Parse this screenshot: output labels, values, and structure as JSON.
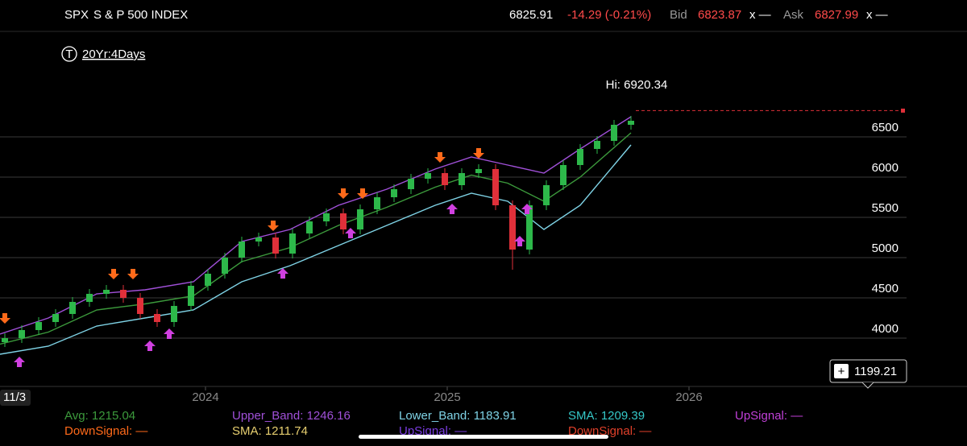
{
  "header": {
    "symbol": "SPX",
    "name": "S & P 500 INDEX",
    "last": 6825.91,
    "change": "-14.29 (-0.21%)",
    "bid_label": "Bid",
    "bid": "6823.87",
    "bid_size": "x —",
    "ask_label": "Ask",
    "ask": "6827.99",
    "ask_size": "x —"
  },
  "period": "20Yr:4Days",
  "date_tag": "11/3",
  "price_tag": "1199.21",
  "chart_data": {
    "type": "candlestick",
    "annotation": "Hi: 6920.34",
    "x": [
      2023.17,
      2023.24,
      2023.31,
      2023.38,
      2023.45,
      2023.52,
      2023.59,
      2023.66,
      2023.73,
      2023.8,
      2023.87,
      2023.94,
      2024.01,
      2024.08,
      2024.15,
      2024.22,
      2024.29,
      2024.36,
      2024.43,
      2024.5,
      2024.57,
      2024.64,
      2024.71,
      2024.78,
      2024.85,
      2024.92,
      2024.99,
      2025.06,
      2025.13,
      2025.2,
      2025.27,
      2025.34,
      2025.41,
      2025.48,
      2025.55,
      2025.62,
      2025.69,
      2025.76
    ],
    "open": [
      3950,
      4000,
      4100,
      4200,
      4300,
      4450,
      4550,
      4600,
      4500,
      4300,
      4200,
      4400,
      4650,
      4800,
      5000,
      5200,
      5250,
      5050,
      5300,
      5450,
      5550,
      5350,
      5600,
      5750,
      5850,
      5980,
      6050,
      5900,
      6050,
      6100,
      5650,
      5100,
      5650,
      5900,
      6150,
      6350,
      6450,
      6650
    ],
    "high": [
      4060,
      4160,
      4260,
      4360,
      4510,
      4610,
      4660,
      4660,
      4560,
      4360,
      4460,
      4710,
      4860,
      5060,
      5260,
      5310,
      5310,
      5360,
      5510,
      5610,
      5610,
      5660,
      5810,
      5910,
      6040,
      6110,
      6110,
      6110,
      6160,
      6160,
      5710,
      5710,
      5960,
      6210,
      6410,
      6510,
      6710,
      6760
    ],
    "low": [
      3890,
      3940,
      4040,
      4140,
      4240,
      4390,
      4490,
      4440,
      4240,
      4140,
      4140,
      4340,
      4590,
      4740,
      4940,
      5140,
      4990,
      4990,
      5240,
      5390,
      5290,
      5290,
      5540,
      5690,
      5790,
      5920,
      5840,
      5840,
      5990,
      5590,
      4850,
      5040,
      5590,
      5840,
      6090,
      6290,
      6390,
      6590
    ],
    "close": [
      4000,
      4100,
      4200,
      4300,
      4450,
      4550,
      4600,
      4500,
      4300,
      4200,
      4400,
      4650,
      4800,
      5000,
      5200,
      5250,
      5050,
      5300,
      5450,
      5550,
      5350,
      5600,
      5750,
      5850,
      5980,
      6050,
      5900,
      6050,
      6100,
      5650,
      5100,
      5650,
      5900,
      6150,
      6350,
      6450,
      6650,
      6700
    ],
    "up_color": "#2db84a",
    "down_color": "#e0303a",
    "bands": [
      {
        "color": "#a050d8",
        "x": [
          2023.15,
          2023.35,
          2023.55,
          2023.75,
          2023.95,
          2024.15,
          2024.35,
          2024.55,
          2024.75,
          2024.95,
          2025.1,
          2025.25,
          2025.4,
          2025.55,
          2025.76
        ],
        "values": [
          4050,
          4250,
          4550,
          4600,
          4700,
          5200,
          5350,
          5650,
          5850,
          6100,
          6250,
          6150,
          6050,
          6350,
          6750
        ]
      },
      {
        "color": "#3c9a3c",
        "x": [
          2023.15,
          2023.35,
          2023.55,
          2023.75,
          2023.95,
          2024.15,
          2024.35,
          2024.55,
          2024.75,
          2024.95,
          2025.1,
          2025.25,
          2025.4,
          2025.55,
          2025.76
        ],
        "values": [
          3925,
          4075,
          4350,
          4425,
          4525,
          4950,
          5125,
          5400,
          5625,
          5875,
          6025,
          5925,
          5700,
          6000,
          6550
        ]
      },
      {
        "color": "#7fd3e6",
        "x": [
          2023.15,
          2023.35,
          2023.55,
          2023.75,
          2023.95,
          2024.15,
          2024.35,
          2024.55,
          2024.75,
          2024.95,
          2025.1,
          2025.25,
          2025.4,
          2025.55,
          2025.76
        ],
        "values": [
          3800,
          3900,
          4150,
          4250,
          4350,
          4700,
          4900,
          5150,
          5400,
          5650,
          5800,
          5700,
          5350,
          5650,
          6400
        ]
      }
    ],
    "down_signals": {
      "color": "#ff6a1a",
      "x": [
        2023.17,
        2023.62,
        2023.7,
        2024.28,
        2024.57,
        2024.65,
        2024.97,
        2025.13
      ],
      "values": [
        4100,
        4650,
        4650,
        5250,
        5650,
        5650,
        6100,
        6150
      ]
    },
    "up_signals": {
      "color": "#d040e0",
      "x": [
        2023.23,
        2023.77,
        2023.85,
        2024.32,
        2024.6,
        2025.02,
        2025.3,
        2025.33
      ],
      "values": [
        3850,
        4050,
        4200,
        4950,
        5450,
        5750,
        5350,
        5750
      ]
    },
    "price_line_color": "#e0303a",
    "xlim": [
      2023.15,
      2026.9
    ],
    "xticks": [
      2024,
      2025,
      2026
    ],
    "ylim": [
      3500,
      7250
    ],
    "yticks": [
      4000,
      4500,
      5000,
      5500,
      6000,
      6500
    ],
    "grid": true
  },
  "legend": [
    [
      {
        "text": "Avg: 1215.04",
        "color": "#3c9a3c"
      },
      {
        "text": "Upper_Band: 1246.16",
        "color": "#a050d8"
      },
      {
        "text": "Lower_Band: 1183.91",
        "color": "#7fd3e6"
      },
      {
        "text": "SMA: 1209.39",
        "color": "#35c8c8"
      },
      {
        "text": "UpSignal: —",
        "color": "#c040d8"
      }
    ],
    [
      {
        "text": "DownSignal: —",
        "color": "#ff6a1a"
      },
      {
        "text": "SMA: 1211.74",
        "color": "#e8d070"
      },
      {
        "text": "UpSignal: —",
        "color": "#7a3ce0"
      },
      {
        "text": "DownSignal: —",
        "color": "#e0402a"
      }
    ]
  ]
}
